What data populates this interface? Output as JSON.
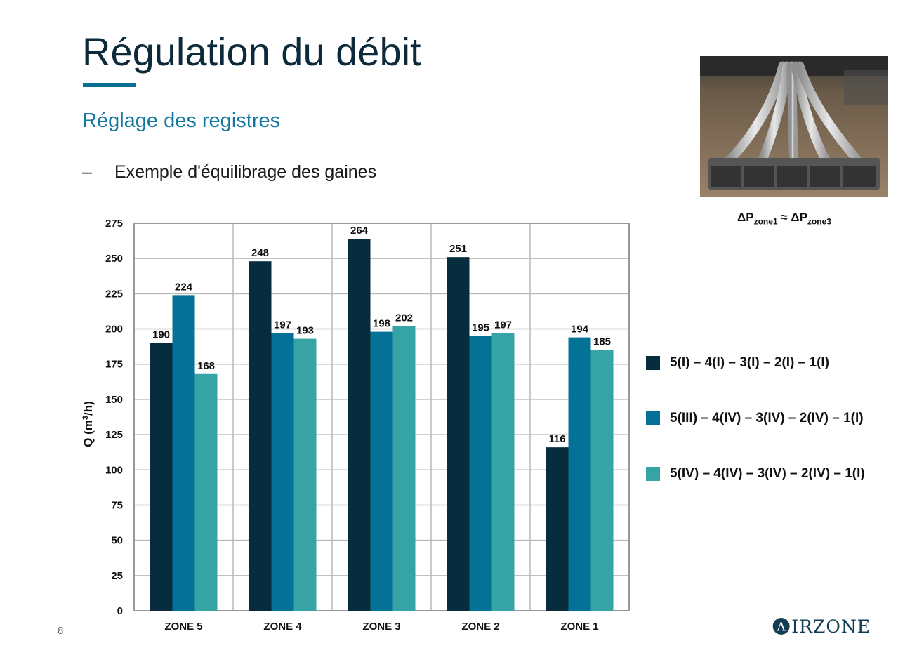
{
  "slide": {
    "title": "Régulation du débit",
    "subtitle": "Réglage des registres",
    "bullet_marker": "–",
    "bullet_text": "Exemple d'équilibrage des gaines",
    "pressure_note": {
      "prefix": "ΔP",
      "sub1": "zone1",
      "approx": " ≈ ΔP",
      "sub2": "zone3"
    },
    "page_number": "8",
    "logo": {
      "initial": "A",
      "rest": "IRZONE",
      "icon": "airzone-logo-icon"
    },
    "photo": {
      "icon": "duct-system-photo"
    }
  },
  "colors": {
    "title": "#0d2a3a",
    "accent": "#0a6f94",
    "series": [
      "#062c3d",
      "#047196",
      "#36a3a5"
    ]
  },
  "chart_data": {
    "type": "bar",
    "categories": [
      "ZONE 5",
      "ZONE 4",
      "ZONE 3",
      "ZONE 2",
      "ZONE 1"
    ],
    "series": [
      {
        "name": "5(I) – 4(I) – 3(I) – 2(I) – 1(I)",
        "values": [
          190,
          248,
          264,
          251,
          116
        ]
      },
      {
        "name": "5(III) – 4(IV) – 3(IV) – 2(IV) – 1(I)",
        "values": [
          224,
          197,
          198,
          195,
          194
        ]
      },
      {
        "name": "5(IV) – 4(IV) – 3(IV) – 2(IV) – 1(I)",
        "values": [
          168,
          193,
          202,
          197,
          185
        ]
      }
    ],
    "ylabel": {
      "main": "Q (m",
      "sup": "3",
      "tail": "/h)"
    },
    "ylim": [
      0,
      275
    ],
    "yticks": [
      0,
      25,
      50,
      75,
      100,
      125,
      150,
      175,
      200,
      225,
      250,
      275
    ],
    "grid": true,
    "legend": "right"
  }
}
